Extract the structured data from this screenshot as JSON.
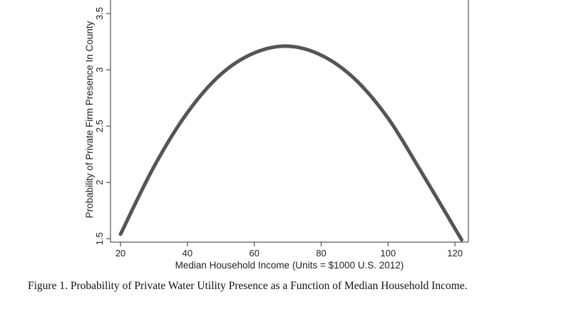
{
  "chart_data": {
    "type": "line",
    "title": "",
    "xlabel": "Median Household Income (Units = $1000 U.S. 2012)",
    "ylabel": "Probability of Private Firm Presence In County",
    "xlim": [
      17,
      124
    ],
    "ylim": [
      1.47,
      3.62
    ],
    "xticks": [
      20,
      40,
      60,
      80,
      100,
      120
    ],
    "yticks": [
      1.5,
      2,
      2.5,
      3,
      3.5
    ],
    "xtick_labels": [
      "20",
      "40",
      "60",
      "80",
      "100",
      "120"
    ],
    "ytick_labels": [
      "1.5",
      "2",
      "2.5",
      "3",
      "3.5"
    ],
    "grid": false,
    "series": [
      {
        "color": "#555555",
        "x": [
          20,
          30,
          40,
          50,
          60,
          70,
          80,
          90,
          100,
          110,
          122
        ],
        "y": [
          1.54,
          2.14,
          2.62,
          2.96,
          3.15,
          3.21,
          3.13,
          2.92,
          2.57,
          2.09,
          1.49
        ]
      }
    ]
  },
  "caption": "Figure 1.  Probability of Private Water Utility Presence as a Function of Median Household Income."
}
